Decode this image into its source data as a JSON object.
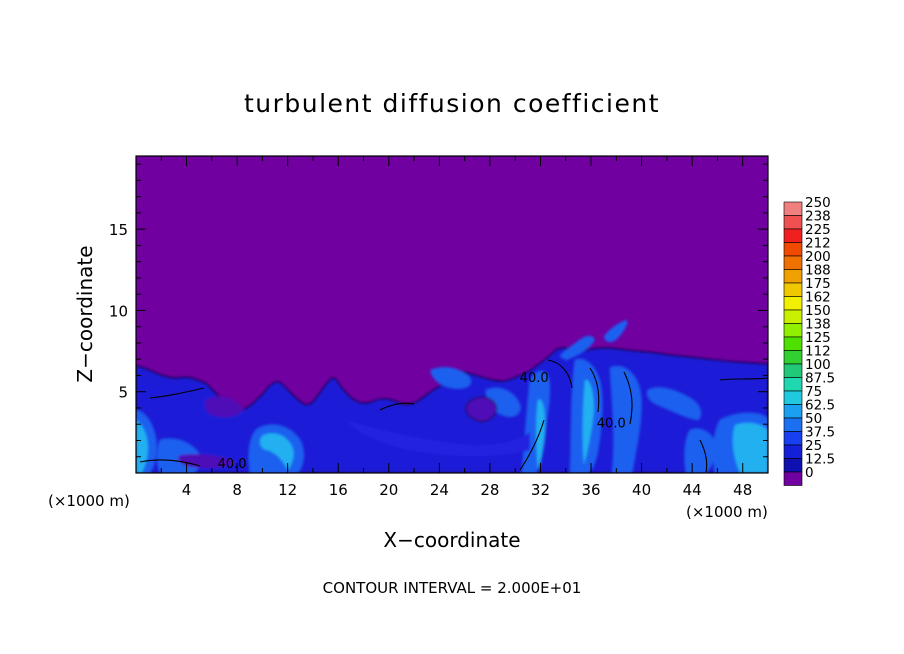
{
  "chart_data": {
    "type": "heatmap",
    "title": "turbulent diffusion coefficient",
    "xlabel": "X−coordinate",
    "ylabel": "Z−coordinate",
    "x_unit_left": "(×1000 m)",
    "x_unit_right": "(×1000 m)",
    "x_ticks": [
      4,
      8,
      12,
      16,
      20,
      24,
      28,
      32,
      36,
      40,
      44,
      48
    ],
    "y_ticks": [
      5,
      10,
      15
    ],
    "xlim": [
      0,
      50
    ],
    "ylim": [
      0,
      19.5
    ],
    "footer": "CONTOUR INTERVAL = 2.000E+01",
    "contour_labels": [
      {
        "text": "40.0",
        "x": 31.5,
        "y": 5.6
      },
      {
        "text": "40.0",
        "x": 37.6,
        "y": 2.8
      },
      {
        "text": "40.0",
        "x": 7.6,
        "y": 0.3
      }
    ],
    "colorbar": {
      "labels": [
        "250",
        "238",
        "225",
        "212",
        "200",
        "188",
        "175",
        "162",
        "150",
        "138",
        "125",
        "112",
        "100",
        "87.5",
        "75",
        "62.5",
        "50",
        "37.5",
        "25",
        "12.5",
        "0"
      ],
      "colors": [
        "#f08080",
        "#f05050",
        "#f02020",
        "#f04a00",
        "#f07000",
        "#f0a000",
        "#f0c800",
        "#f0f000",
        "#c8f000",
        "#90f000",
        "#50e000",
        "#30d030",
        "#20c878",
        "#20d8b0",
        "#20c8e0",
        "#1aa0f0",
        "#1a70f0",
        "#1840f0",
        "#1420d8",
        "#1010b0",
        "#7000a0"
      ]
    },
    "field_description_colors": {
      "background": "#7000a0",
      "low": "#1a1ad8",
      "mid": "#1a60f0",
      "high": "#20b0f0"
    }
  }
}
